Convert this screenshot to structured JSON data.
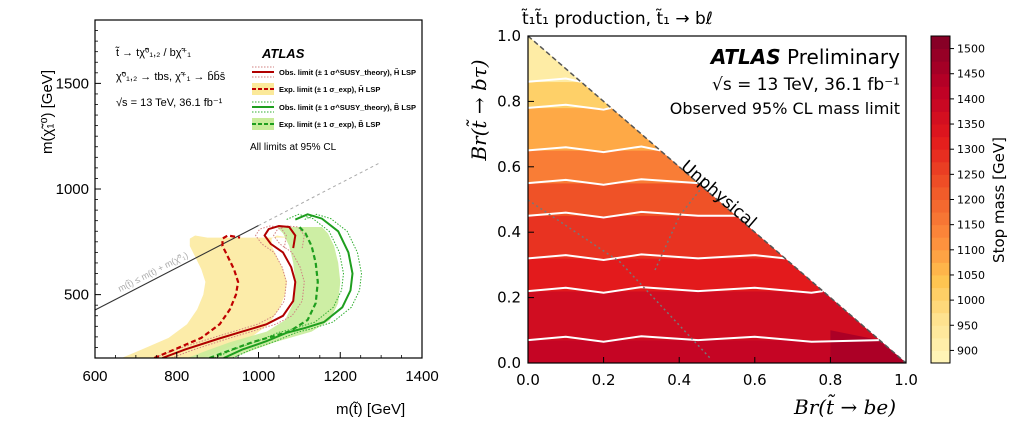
{
  "chart_data": [
    {
      "type": "line",
      "xlabel": "m(t̃) [GeV]",
      "ylabel": "m(χ̃₁⁰) [GeV]",
      "xlim": [
        600,
        1400
      ],
      "ylim": [
        200,
        1800
      ],
      "xticks": [
        "600",
        "800",
        "1000",
        "1200",
        "1400"
      ],
      "yticks": [
        "500",
        "1000",
        "1500"
      ],
      "process_lines": [
        "t̃ → tχ̃⁰₁,₂ / bχ̃⁺₁",
        "χ̃⁰₁,₂ → tbs, χ̃⁺₁ → b̄b̄s̄",
        "√s = 13 TeV, 36.1 fb⁻¹"
      ],
      "brand": "ATLAS",
      "legend_position": "top-right",
      "legend": [
        {
          "label": "Obs. limit (± 1 σ^SUSY_theory), H̃ LSP",
          "color": "#b00000",
          "style": "solid"
        },
        {
          "label": "Exp. limit (± 1 σ_exp), H̃ LSP",
          "color": "#c00000",
          "style": "dashed",
          "band": "#fbe99a"
        },
        {
          "label": "Obs. limit (± 1 σ^SUSY_theory), B̃ LSP",
          "color": "#1e9e1e",
          "style": "solid"
        },
        {
          "label": "Exp. limit (± 1 σ_exp), B̃ LSP",
          "color": "#1e9e1e",
          "style": "dashed",
          "band": "#c8ec9a"
        }
      ],
      "footnote": "All limits at 95% CL",
      "diagonal_label": "m(t̃) ≤ m(t) + m(χ̃⁰₁)",
      "series": [
        {
          "name": "Obs. limit, H̃ LSP",
          "x": [
            765,
            820,
            900,
            960,
            1020,
            1060,
            1085,
            1090,
            1080,
            1060,
            1030,
            1015,
            1025,
            1050,
            1075,
            1090,
            1085
          ],
          "y": [
            200,
            240,
            290,
            325,
            360,
            400,
            470,
            560,
            630,
            700,
            740,
            780,
            810,
            825,
            820,
            780,
            720
          ]
        },
        {
          "name": "Exp. limit, H̃ LSP",
          "x": [
            745,
            800,
            860,
            905,
            930,
            945,
            950,
            940,
            925,
            912,
            912,
            925,
            955
          ],
          "y": [
            200,
            245,
            295,
            360,
            430,
            500,
            560,
            620,
            680,
            730,
            765,
            780,
            770
          ]
        },
        {
          "name": "Obs. limit, B̃ LSP",
          "x": [
            915,
            960,
            1020,
            1070,
            1110,
            1160,
            1205,
            1225,
            1230,
            1220,
            1195,
            1155,
            1120,
            1090
          ],
          "y": [
            200,
            240,
            280,
            320,
            340,
            370,
            440,
            520,
            600,
            700,
            800,
            860,
            880,
            855
          ]
        },
        {
          "name": "Exp. limit, B̃ LSP",
          "x": [
            880,
            935,
            985,
            1030,
            1075,
            1120,
            1140,
            1145,
            1140,
            1130,
            1115,
            1100
          ],
          "y": [
            200,
            240,
            275,
            300,
            325,
            380,
            460,
            560,
            650,
            730,
            790,
            820
          ]
        }
      ]
    },
    {
      "type": "heatmap",
      "title": "t̃₁t̃₁ production, t̃₁ → bℓ",
      "xlabel": "Br(t̃ → be)",
      "ylabel": "Br(t̃ → bτ)",
      "xlim": [
        0.0,
        1.0
      ],
      "ylim": [
        0.0,
        1.0
      ],
      "xticks": [
        "0.0",
        "0.2",
        "0.4",
        "0.6",
        "0.8",
        "1.0"
      ],
      "yticks": [
        "0.0",
        "0.2",
        "0.4",
        "0.6",
        "0.8",
        "1.0"
      ],
      "brand": "ATLAS",
      "brand_suffix": "Preliminary",
      "energy_line": "√s = 13 TeV, 36.1 fb⁻¹",
      "subtitle": "Observed 95% CL mass limit",
      "region_label": "Unphysical",
      "colorbar_label": "Stop mass [GeV]",
      "colorbar_ticks": [
        "900",
        "950",
        "1000",
        "1050",
        "1100",
        "1150",
        "1200",
        "1250",
        "1300",
        "1350",
        "1400",
        "1450",
        "1500"
      ],
      "colorbar_range": [
        875,
        1525
      ],
      "bands_by_br_btau": [
        {
          "y": [
            0.0,
            0.07
          ],
          "mass": 1400
        },
        {
          "y": [
            0.07,
            0.22
          ],
          "mass": 1370
        },
        {
          "y": [
            0.22,
            0.32
          ],
          "mass": 1320
        },
        {
          "y": [
            0.32,
            0.45
          ],
          "mass": 1280
        },
        {
          "y": [
            0.45,
            0.55
          ],
          "mass": 1230
        },
        {
          "y": [
            0.55,
            0.65
          ],
          "mass": 1150
        },
        {
          "y": [
            0.65,
            0.78
          ],
          "mass": 1080
        },
        {
          "y": [
            0.78,
            0.86
          ],
          "mass": 1010
        },
        {
          "y": [
            0.86,
            1.0
          ],
          "mass": 920
        }
      ]
    }
  ]
}
